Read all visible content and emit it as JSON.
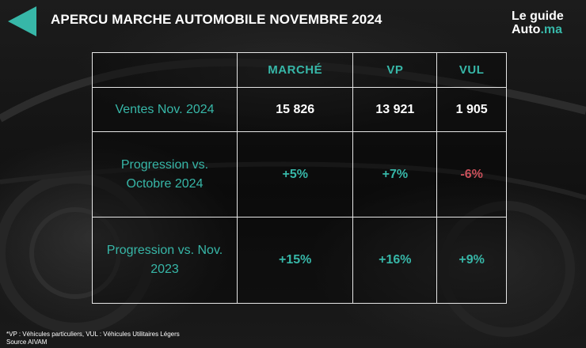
{
  "header": {
    "title": "APERCU MARCHE AUTOMOBILE  NOVEMBRE 2024",
    "accent_color": "#37b7a8"
  },
  "logo": {
    "line1": "Le guide",
    "line2_main": "Auto",
    "line2_accent": ".ma"
  },
  "table": {
    "columns": [
      "",
      "MARCHÉ",
      "VP",
      "VUL"
    ],
    "rows": [
      {
        "label": "Ventes Nov. 2024",
        "values": [
          "15 826",
          "13 921",
          "1 905"
        ]
      },
      {
        "label": "Progression vs. Octobre 2024",
        "values": [
          "+5%",
          "+7%",
          "-6%"
        ]
      },
      {
        "label": "Progression vs. Nov. 2023",
        "values": [
          "+15%",
          "+16%",
          "+9%"
        ]
      }
    ],
    "colors": {
      "text": "#ffffff",
      "accent": "#37b7a8",
      "negative": "#c9505a",
      "border": "#e6e6e6"
    }
  },
  "footnote": {
    "line1": "*VP : Véhicules particuliers, VUL : Véhicules Utilitaires Légers",
    "line2": "Source AIVAM"
  }
}
